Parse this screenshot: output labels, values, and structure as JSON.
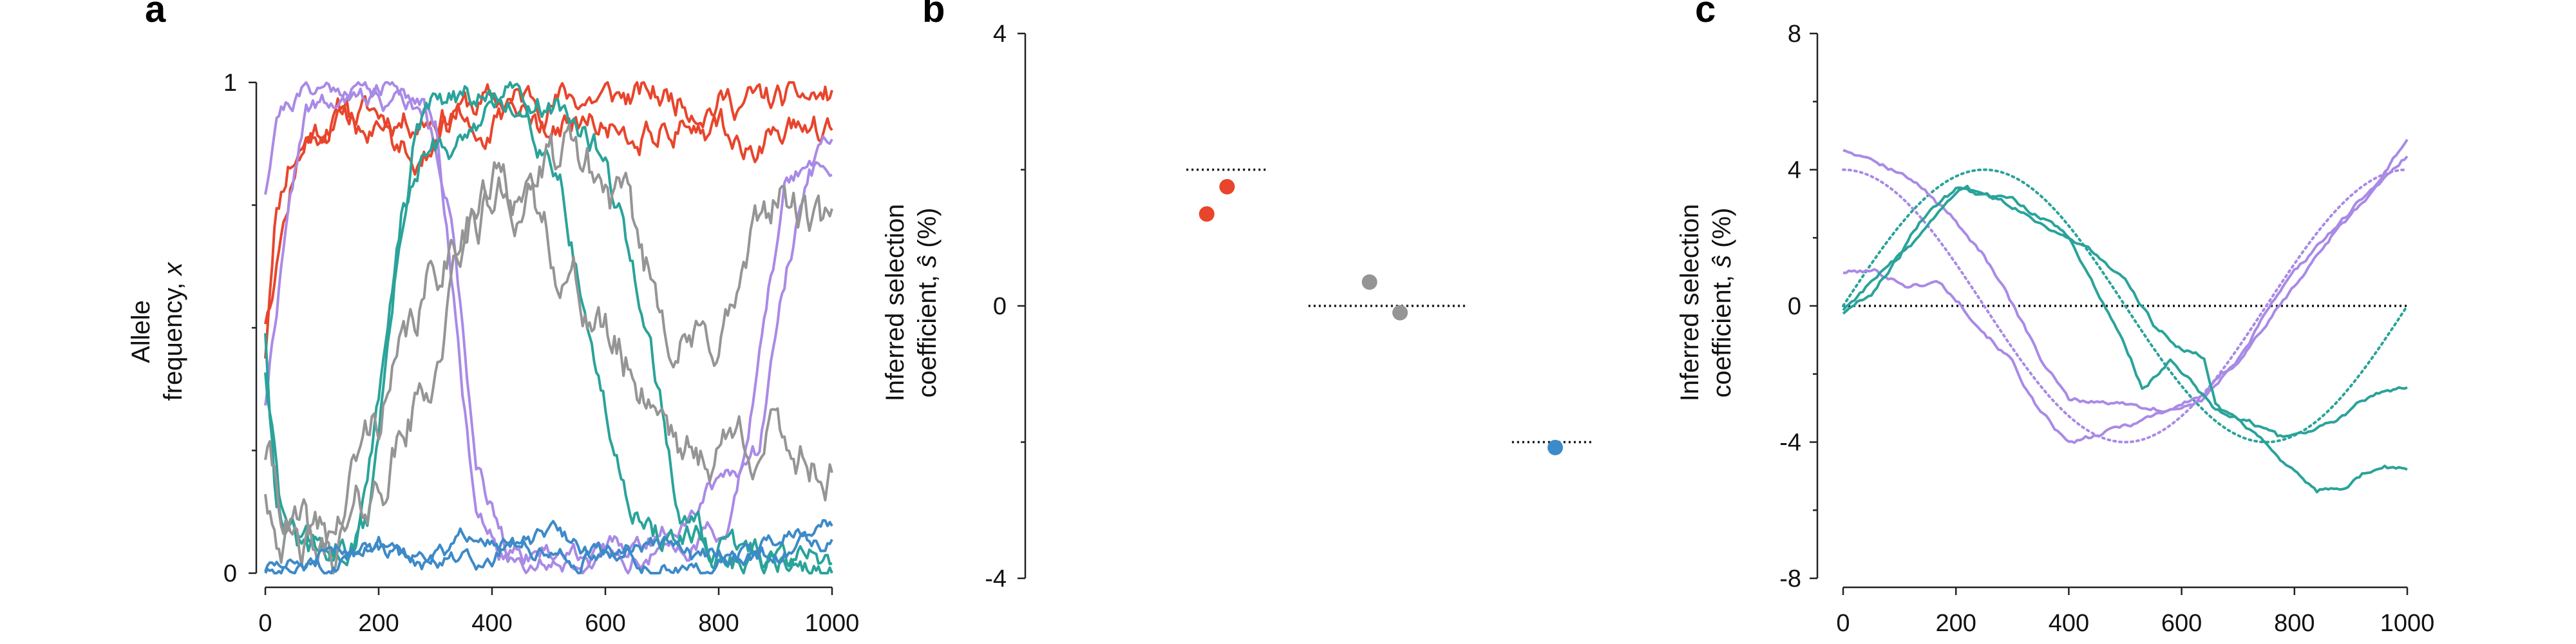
{
  "chart_data": [
    {
      "type": "line",
      "panel_label": "a",
      "ylabel_line1": "Allele",
      "ylabel_line2_pre": "frequency, ",
      "ylabel_var": "x",
      "xlim": [
        0,
        1000
      ],
      "ylim": [
        0,
        1
      ],
      "xticks": [
        0,
        200,
        400,
        600,
        800,
        1000
      ],
      "yticks": [
        0,
        1
      ],
      "colors": {
        "red": "#e8452c",
        "purple": "#a98ae6",
        "teal": "#2aa39a",
        "gray": "#959595",
        "blue": "#3d8ac8"
      },
      "series": [
        {
          "color": "red",
          "seed": 11,
          "sigma": 0.022,
          "pts": [
            [
              0,
              0.45
            ],
            [
              15,
              0.72
            ],
            [
              40,
              0.84
            ],
            [
              80,
              0.9
            ],
            [
              140,
              0.94
            ],
            [
              250,
              0.93
            ],
            [
              350,
              0.95
            ],
            [
              500,
              0.97
            ],
            [
              700,
              0.97
            ],
            [
              900,
              0.96
            ],
            [
              1000,
              0.97
            ]
          ]
        },
        {
          "color": "red",
          "seed": 12,
          "sigma": 0.022,
          "pts": [
            [
              0,
              0.52
            ],
            [
              20,
              0.66
            ],
            [
              60,
              0.86
            ],
            [
              120,
              0.92
            ],
            [
              200,
              0.9
            ],
            [
              260,
              0.86
            ],
            [
              330,
              0.9
            ],
            [
              460,
              0.92
            ],
            [
              600,
              0.9
            ],
            [
              760,
              0.92
            ],
            [
              850,
              0.88
            ],
            [
              1000,
              0.9
            ]
          ]
        },
        {
          "color": "purple",
          "seed": 21,
          "sigma": 0.015,
          "pts": [
            [
              0,
              0.78
            ],
            [
              20,
              0.95
            ],
            [
              80,
              0.99
            ],
            [
              240,
              0.99
            ],
            [
              300,
              0.92
            ],
            [
              340,
              0.5
            ],
            [
              370,
              0.12
            ],
            [
              420,
              0.03
            ],
            [
              560,
              0.03
            ],
            [
              700,
              0.04
            ],
            [
              820,
              0.1
            ],
            [
              880,
              0.5
            ],
            [
              920,
              0.8
            ],
            [
              1000,
              0.88
            ]
          ]
        },
        {
          "color": "purple",
          "seed": 22,
          "sigma": 0.015,
          "pts": [
            [
              0,
              0.35
            ],
            [
              25,
              0.6
            ],
            [
              70,
              0.94
            ],
            [
              200,
              0.97
            ],
            [
              280,
              0.95
            ],
            [
              330,
              0.75
            ],
            [
              370,
              0.2
            ],
            [
              430,
              0.05
            ],
            [
              600,
              0.04
            ],
            [
              700,
              0.08
            ],
            [
              800,
              0.2
            ],
            [
              870,
              0.25
            ],
            [
              910,
              0.6
            ],
            [
              960,
              0.82
            ],
            [
              1000,
              0.85
            ]
          ]
        },
        {
          "color": "teal",
          "seed": 31,
          "sigma": 0.02,
          "pts": [
            [
              0,
              0.5
            ],
            [
              20,
              0.15
            ],
            [
              60,
              0.05
            ],
            [
              120,
              0.02
            ],
            [
              180,
              0.1
            ],
            [
              220,
              0.5
            ],
            [
              260,
              0.88
            ],
            [
              300,
              0.95
            ],
            [
              450,
              0.97
            ],
            [
              520,
              0.82
            ],
            [
              570,
              0.5
            ],
            [
              620,
              0.22
            ],
            [
              680,
              0.08
            ],
            [
              800,
              0.04
            ],
            [
              1000,
              0.03
            ]
          ]
        },
        {
          "color": "teal",
          "seed": 32,
          "sigma": 0.02,
          "pts": [
            [
              0,
              0.42
            ],
            [
              30,
              0.1
            ],
            [
              100,
              0.04
            ],
            [
              160,
              0.06
            ],
            [
              200,
              0.35
            ],
            [
              240,
              0.72
            ],
            [
              280,
              0.85
            ],
            [
              330,
              0.88
            ],
            [
              380,
              0.93
            ],
            [
              460,
              0.97
            ],
            [
              530,
              0.95
            ],
            [
              580,
              0.88
            ],
            [
              630,
              0.72
            ],
            [
              680,
              0.48
            ],
            [
              730,
              0.12
            ],
            [
              800,
              0.03
            ],
            [
              1000,
              0.02
            ]
          ]
        },
        {
          "color": "gray",
          "seed": 41,
          "sigma": 0.035,
          "pts": [
            [
              0,
              0.25
            ],
            [
              40,
              0.1
            ],
            [
              80,
              0.05
            ],
            [
              130,
              0.1
            ],
            [
              170,
              0.25
            ],
            [
              230,
              0.4
            ],
            [
              280,
              0.55
            ],
            [
              340,
              0.72
            ],
            [
              420,
              0.8
            ],
            [
              480,
              0.72
            ],
            [
              540,
              0.6
            ],
            [
              590,
              0.5
            ],
            [
              640,
              0.42
            ],
            [
              700,
              0.35
            ],
            [
              760,
              0.22
            ],
            [
              820,
              0.28
            ],
            [
              880,
              0.28
            ],
            [
              940,
              0.25
            ],
            [
              1000,
              0.22
            ]
          ]
        },
        {
          "color": "gray",
          "seed": 42,
          "sigma": 0.035,
          "pts": [
            [
              0,
              0.18
            ],
            [
              50,
              0.04
            ],
            [
              100,
              0.02
            ],
            [
              150,
              0.08
            ],
            [
              200,
              0.18
            ],
            [
              250,
              0.3
            ],
            [
              300,
              0.42
            ],
            [
              350,
              0.68
            ],
            [
              400,
              0.75
            ],
            [
              450,
              0.8
            ],
            [
              500,
              0.82
            ],
            [
              550,
              0.84
            ],
            [
              620,
              0.76
            ],
            [
              680,
              0.6
            ],
            [
              730,
              0.48
            ],
            [
              780,
              0.45
            ],
            [
              830,
              0.55
            ],
            [
              900,
              0.78
            ],
            [
              950,
              0.72
            ],
            [
              1000,
              0.67
            ]
          ]
        },
        {
          "color": "blue",
          "seed": 51,
          "sigma": 0.012,
          "pts": [
            [
              0,
              0.01
            ],
            [
              100,
              0.02
            ],
            [
              200,
              0.07
            ],
            [
              260,
              0.05
            ],
            [
              320,
              0.04
            ],
            [
              380,
              0.1
            ],
            [
              440,
              0.05
            ],
            [
              520,
              0.08
            ],
            [
              580,
              0.04
            ],
            [
              640,
              0.05
            ],
            [
              700,
              0.06
            ],
            [
              760,
              0.03
            ],
            [
              820,
              0.04
            ],
            [
              880,
              0.06
            ],
            [
              940,
              0.1
            ],
            [
              1000,
              0.11
            ]
          ]
        },
        {
          "color": "blue",
          "seed": 52,
          "sigma": 0.012,
          "pts": [
            [
              0,
              0.0
            ],
            [
              120,
              0.01
            ],
            [
              180,
              0.06
            ],
            [
              240,
              0.03
            ],
            [
              300,
              0.02
            ],
            [
              380,
              0.03
            ],
            [
              460,
              0.06
            ],
            [
              540,
              0.03
            ],
            [
              620,
              0.05
            ],
            [
              700,
              0.02
            ],
            [
              780,
              0.01
            ],
            [
              860,
              0.03
            ],
            [
              940,
              0.05
            ],
            [
              1000,
              0.07
            ]
          ]
        }
      ]
    },
    {
      "type": "scatter",
      "panel_label": "b",
      "ylabel_line1": "Inferred selection",
      "ylabel_line2_pre": "coefficient, ",
      "ylabel_var": "ŝ",
      "ylabel_line2_post": " (%)",
      "xlim": [
        0,
        1
      ],
      "ylim": [
        -4,
        4
      ],
      "yticks": [
        -4,
        0,
        4
      ],
      "points": [
        {
          "x": 0.22,
          "y": 1.35,
          "color": "#e8452c"
        },
        {
          "x": 0.26,
          "y": 1.75,
          "color": "#e8452c"
        },
        {
          "x": 0.54,
          "y": 0.35,
          "color": "#959595"
        },
        {
          "x": 0.6,
          "y": -0.1,
          "color": "#959595"
        },
        {
          "x": 0.905,
          "y": -2.08,
          "color": "#3d8ac8"
        }
      ],
      "true_values": [
        {
          "x0": 0.18,
          "x1": 0.34,
          "y": 2.0
        },
        {
          "x0": 0.42,
          "x1": 0.73,
          "y": 0.0
        },
        {
          "x0": 0.82,
          "x1": 0.98,
          "y": -2.0
        }
      ]
    },
    {
      "type": "line",
      "panel_label": "c",
      "ylabel_line1": "Inferred selection",
      "ylabel_line2_pre": "coefficient, ",
      "ylabel_var": "ŝ",
      "ylabel_line2_post": " (%)",
      "xlim": [
        0,
        1000
      ],
      "ylim": [
        -8,
        8
      ],
      "xticks": [
        0,
        200,
        400,
        600,
        800,
        1000
      ],
      "yticks": [
        -8,
        -4,
        0,
        4,
        8
      ],
      "zero_line": true,
      "true_curves": [
        {
          "color": "purple",
          "func": "cos",
          "amplitude": 4,
          "period": 1000,
          "phase": 0
        },
        {
          "color": "teal",
          "func": "sin",
          "amplitude": 4,
          "period": 1000,
          "phase": 0
        }
      ],
      "series": [
        {
          "color": "purple",
          "pts": [
            [
              0,
              4.6
            ],
            [
              50,
              4.45
            ],
            [
              100,
              4.0
            ],
            [
              150,
              3.3
            ],
            [
              200,
              2.5
            ],
            [
              250,
              1.5
            ],
            [
              300,
              0.0
            ],
            [
              350,
              -1.6
            ],
            [
              400,
              -2.8
            ],
            [
              460,
              -2.8
            ],
            [
              520,
              -2.9
            ],
            [
              580,
              -3.05
            ],
            [
              640,
              -2.7
            ],
            [
              700,
              -1.6
            ],
            [
              760,
              0.0
            ],
            [
              820,
              1.3
            ],
            [
              880,
              2.4
            ],
            [
              940,
              3.5
            ],
            [
              1000,
              4.9
            ]
          ]
        },
        {
          "color": "purple",
          "pts": [
            [
              0,
              1.0
            ],
            [
              60,
              1.0
            ],
            [
              120,
              0.6
            ],
            [
              170,
              0.7
            ],
            [
              230,
              -0.3
            ],
            [
              300,
              -1.6
            ],
            [
              350,
              -3.2
            ],
            [
              400,
              -4.1
            ],
            [
              460,
              -3.8
            ],
            [
              520,
              -3.4
            ],
            [
              580,
              -3.0
            ],
            [
              640,
              -2.6
            ],
            [
              700,
              -1.6
            ],
            [
              760,
              -0.3
            ],
            [
              820,
              1.0
            ],
            [
              880,
              2.4
            ],
            [
              940,
              3.3
            ],
            [
              1000,
              4.4
            ]
          ]
        },
        {
          "color": "teal",
          "pts": [
            [
              0,
              -0.2
            ],
            [
              50,
              0.4
            ],
            [
              100,
              1.5
            ],
            [
              150,
              2.8
            ],
            [
              200,
              3.4
            ],
            [
              260,
              3.2
            ],
            [
              320,
              2.8
            ],
            [
              380,
              2.2
            ],
            [
              440,
              1.6
            ],
            [
              500,
              0.6
            ],
            [
              550,
              -0.6
            ],
            [
              600,
              -1.2
            ],
            [
              640,
              -1.5
            ],
            [
              660,
              -2.8
            ],
            [
              700,
              -3.4
            ],
            [
              750,
              -3.9
            ],
            [
              800,
              -4.8
            ],
            [
              840,
              -5.4
            ],
            [
              880,
              -5.3
            ],
            [
              920,
              -4.9
            ],
            [
              960,
              -4.6
            ],
            [
              1000,
              -4.8
            ]
          ]
        },
        {
          "color": "teal",
          "pts": [
            [
              0,
              -0.1
            ],
            [
              60,
              0.9
            ],
            [
              110,
              1.6
            ],
            [
              160,
              2.4
            ],
            [
              220,
              3.5
            ],
            [
              250,
              3.1
            ],
            [
              300,
              3.0
            ],
            [
              360,
              2.5
            ],
            [
              400,
              2.0
            ],
            [
              440,
              0.8
            ],
            [
              480,
              -0.6
            ],
            [
              510,
              -1.6
            ],
            [
              530,
              -2.4
            ],
            [
              580,
              -1.6
            ],
            [
              620,
              -2.2
            ],
            [
              660,
              -3.0
            ],
            [
              720,
              -3.4
            ],
            [
              770,
              -3.9
            ],
            [
              820,
              -3.9
            ],
            [
              880,
              -3.3
            ],
            [
              940,
              -2.6
            ],
            [
              1000,
              -2.3
            ]
          ]
        }
      ]
    }
  ]
}
